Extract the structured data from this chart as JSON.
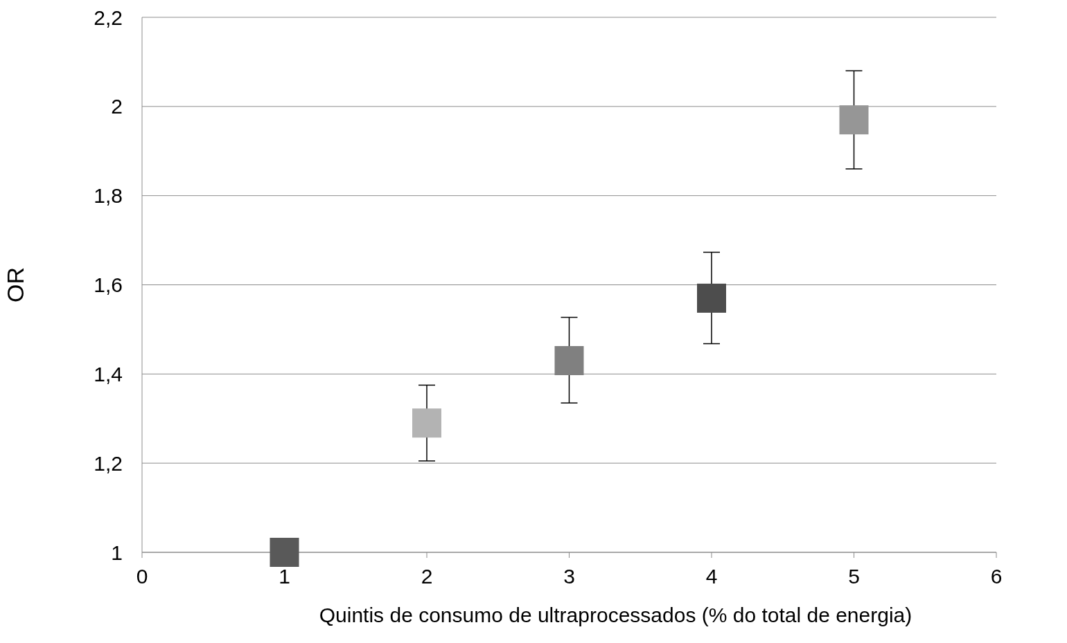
{
  "chart_data": {
    "type": "scatter",
    "xlabel": "Quintis de consumo de ultraprocessados (% do total de energia)",
    "ylabel": "OR",
    "x": [
      1,
      2,
      3,
      4,
      5
    ],
    "values": [
      1.0,
      1.29,
      1.43,
      1.57,
      1.97
    ],
    "colors": [
      "#595959",
      "#b3b3b3",
      "#808080",
      "#4d4d4d",
      "#969696"
    ],
    "errors": [
      null,
      [
        1.205,
        1.375
      ],
      [
        1.335,
        1.527
      ],
      [
        1.468,
        1.673
      ],
      [
        1.86,
        2.08
      ]
    ],
    "xlim": [
      0,
      6
    ],
    "xticks": [
      0,
      1,
      2,
      3,
      4,
      5,
      6
    ],
    "ylim": [
      1,
      2.2
    ],
    "yticks": [
      {
        "value": 1,
        "label": "1"
      },
      {
        "value": 1.2,
        "label": "1,2"
      },
      {
        "value": 1.4,
        "label": "1,4"
      },
      {
        "value": 1.6,
        "label": "1,6"
      },
      {
        "value": 1.8,
        "label": "1,8"
      },
      {
        "value": 2,
        "label": "2"
      },
      {
        "value": 2.2,
        "label": "2,2"
      }
    ],
    "grid": "y",
    "marker": "square"
  }
}
